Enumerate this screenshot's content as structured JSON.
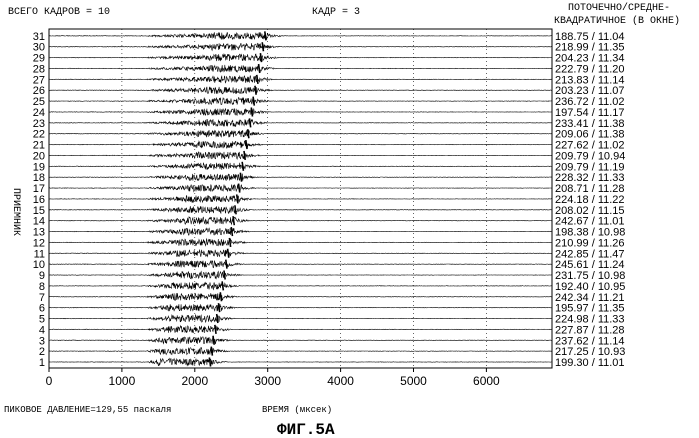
{
  "header": {
    "total_frames": "ВСЕГО КАДРОВ = 10",
    "frame": "КАДР = 3",
    "rms_line1": "ПОТОЧЕЧНО/СРЕДНЕ-",
    "rms_line2": "КВАДРАТИЧНОЕ (В ОКНЕ)"
  },
  "footer": {
    "peak_pressure": "ПИКОВОЕ ДАВЛЕНИЕ=129,55 паскаля",
    "xlabel": "ВРЕМЯ (мксек)",
    "figure_label": "ФИГ.5A"
  },
  "colors": {
    "ink": "#000000",
    "background": "#ffffff"
  },
  "chart_data": {
    "type": "line",
    "ylabel": "ПРИЕМНИК",
    "xlabel": "ВРЕМЯ (мксек)",
    "xlim": [
      0,
      6900
    ],
    "xticks": [
      0,
      1000,
      2000,
      3000,
      4000,
      5000,
      6000
    ],
    "grid": "dotted vertical at x ticks",
    "receivers": [
      1,
      2,
      3,
      4,
      5,
      6,
      7,
      8,
      9,
      10,
      11,
      12,
      13,
      14,
      15,
      16,
      17,
      18,
      19,
      20,
      21,
      22,
      23,
      24,
      25,
      26,
      27,
      28,
      29,
      30,
      31
    ],
    "arrival_time_us": [
      2200,
      2225,
      2250,
      2275,
      2300,
      2325,
      2350,
      2375,
      2400,
      2425,
      2450,
      2475,
      2500,
      2525,
      2550,
      2575,
      2600,
      2625,
      2650,
      2675,
      2700,
      2725,
      2750,
      2775,
      2800,
      2825,
      2850,
      2875,
      2900,
      2925,
      2960
    ],
    "values": [
      "199.30 / 11.01",
      "217.25 / 10.93",
      "237.62 / 11.14",
      "227.87 / 11.28",
      "224.98 / 11.33",
      "195.97 / 11.35",
      "242.34 / 11.21",
      "192.40 / 10.95",
      "231.75 / 10.98",
      "245.61 / 11.24",
      "242.85 / 11.47",
      "210.99 / 11.26",
      "198.38 / 10.98",
      "242.67 / 11.01",
      "208.02 / 11.15",
      "224.18 / 11.22",
      "208.71 / 11.28",
      "228.32 / 11.33",
      "209.79 / 11.19",
      "209.79 / 10.94",
      "227.62 / 11.02",
      "209.06 / 11.38",
      "233.41 / 11.38",
      "197.54 / 11.17",
      "236.72 / 11.02",
      "203.23 / 11.07",
      "213.83 / 11.14",
      "222.79 / 11.20",
      "204.23 / 11.34",
      "218.99 / 11.35",
      "188.75 / 11.04"
    ]
  }
}
